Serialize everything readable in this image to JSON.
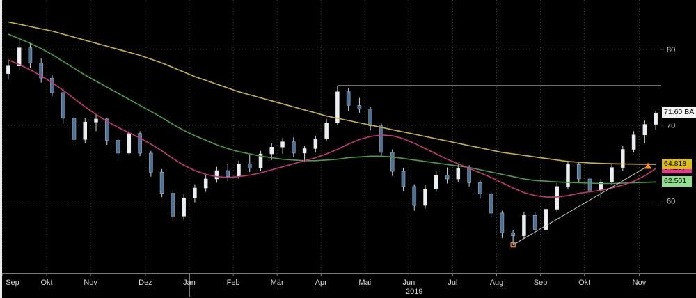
{
  "colors": {
    "background": "#000000",
    "grid": "#3e3e3e",
    "candle_up": "#eceff2",
    "candle_down": "#4e7093",
    "wick": "#ccd4dc",
    "ma_yellow": "#c9b53a",
    "ma_green": "#46a046",
    "ma_magenta": "#c93579",
    "annotation_white": "#d9d9d9",
    "marker_orange": "#ff8c1a",
    "badge_last_bg": "#f4f4f4",
    "badge_yellow_bg": "#d9bc1e",
    "badge_magenta_bg": "#e8359b",
    "badge_green_bg": "#8fdf8f"
  },
  "chart_data": {
    "type": "candlestick",
    "title": "",
    "x_range_label": "Sep 2018 - Nov 2019",
    "resolution": "weekly (read from daily chart)",
    "ylim": [
      50.5,
      86.5
    ],
    "y_ticks": [
      60,
      70,
      80
    ],
    "grid": "dotted",
    "months": [
      {
        "label": "Sep",
        "index": 0
      },
      {
        "label": "Okt",
        "index": 4
      },
      {
        "label": "Nov",
        "index": 8
      },
      {
        "label": "Dez",
        "index": 13
      },
      {
        "label": "Jan",
        "index": 17
      },
      {
        "label": "Feb",
        "index": 21
      },
      {
        "label": "Mär",
        "index": 25
      },
      {
        "label": "Apr",
        "index": 29
      },
      {
        "label": "Mai",
        "index": 33
      },
      {
        "label": "Jun",
        "index": 37
      },
      {
        "label": "Jul",
        "index": 41
      },
      {
        "label": "Aug",
        "index": 45
      },
      {
        "label": "Sep",
        "index": 49
      },
      {
        "label": "Okt",
        "index": 53
      },
      {
        "label": "Nov",
        "index": 58
      }
    ],
    "year_label": {
      "text": "2019",
      "at_index": 37.5
    },
    "year_separator_index": 17,
    "candles": [
      [
        76.8,
        78.5,
        76.0,
        77.8
      ],
      [
        77.8,
        81.4,
        77.2,
        80.2
      ],
      [
        80.2,
        80.8,
        77.5,
        78.2
      ],
      [
        78.2,
        78.8,
        75.6,
        76.2
      ],
      [
        76.2,
        76.6,
        73.8,
        74.3
      ],
      [
        74.3,
        74.8,
        70.2,
        70.9
      ],
      [
        70.9,
        71.5,
        67.4,
        68.1
      ],
      [
        68.1,
        70.9,
        67.6,
        70.4
      ],
      [
        70.4,
        71.4,
        69.2,
        70.8
      ],
      [
        70.8,
        71.0,
        67.4,
        68.0
      ],
      [
        68.0,
        68.4,
        65.6,
        66.3
      ],
      [
        66.3,
        69.3,
        66.0,
        68.9
      ],
      [
        68.9,
        69.2,
        65.9,
        66.3
      ],
      [
        66.3,
        66.6,
        63.2,
        63.8
      ],
      [
        63.8,
        64.2,
        60.5,
        61.0
      ],
      [
        61.0,
        61.4,
        57.3,
        58.0
      ],
      [
        58.0,
        60.9,
        57.5,
        60.4
      ],
      [
        60.4,
        62.2,
        59.8,
        61.7
      ],
      [
        61.7,
        63.4,
        61.2,
        62.9
      ],
      [
        62.9,
        64.5,
        62.4,
        64.0
      ],
      [
        64.0,
        64.9,
        62.6,
        63.2
      ],
      [
        63.2,
        65.3,
        62.9,
        64.9
      ],
      [
        64.9,
        66.1,
        63.8,
        64.3
      ],
      [
        64.3,
        66.6,
        64.0,
        66.2
      ],
      [
        66.2,
        67.6,
        65.4,
        67.1
      ],
      [
        67.1,
        68.3,
        66.2,
        67.8
      ],
      [
        67.8,
        68.4,
        65.8,
        66.3
      ],
      [
        66.3,
        67.3,
        65.1,
        66.9
      ],
      [
        66.9,
        68.6,
        66.4,
        68.2
      ],
      [
        68.2,
        70.8,
        67.9,
        70.3
      ],
      [
        70.3,
        75.2,
        70.0,
        74.4
      ],
      [
        74.4,
        74.9,
        71.8,
        72.6
      ],
      [
        72.6,
        73.6,
        71.6,
        72.1
      ],
      [
        72.1,
        72.4,
        69.3,
        69.9
      ],
      [
        69.9,
        70.2,
        65.9,
        66.4
      ],
      [
        66.4,
        66.8,
        63.3,
        63.9
      ],
      [
        63.9,
        64.3,
        61.3,
        61.9
      ],
      [
        61.9,
        62.2,
        58.7,
        59.4
      ],
      [
        59.4,
        62.1,
        59.0,
        61.6
      ],
      [
        61.6,
        63.9,
        61.2,
        63.4
      ],
      [
        63.4,
        64.4,
        62.3,
        62.9
      ],
      [
        62.9,
        64.8,
        62.5,
        64.3
      ],
      [
        64.3,
        64.7,
        61.9,
        62.4
      ],
      [
        62.4,
        62.8,
        60.3,
        60.9
      ],
      [
        60.9,
        61.2,
        57.9,
        58.4
      ],
      [
        58.4,
        58.7,
        55.1,
        55.8
      ],
      [
        55.8,
        56.2,
        54.2,
        55.4
      ],
      [
        55.4,
        58.6,
        55.0,
        58.1
      ],
      [
        58.1,
        58.5,
        55.6,
        56.2
      ],
      [
        56.2,
        59.4,
        55.9,
        58.9
      ],
      [
        58.9,
        62.4,
        58.5,
        61.9
      ],
      [
        61.9,
        65.3,
        61.5,
        64.8
      ],
      [
        64.8,
        65.2,
        62.4,
        62.9
      ],
      [
        62.9,
        63.3,
        60.9,
        61.4
      ],
      [
        61.4,
        62.9,
        60.4,
        62.5
      ],
      [
        62.5,
        64.9,
        62.1,
        64.4
      ],
      [
        64.4,
        67.3,
        64.0,
        66.8
      ],
      [
        66.8,
        69.2,
        66.4,
        68.7
      ],
      [
        68.7,
        70.6,
        67.6,
        70.1
      ],
      [
        70.1,
        71.9,
        69.4,
        71.6
      ]
    ],
    "series": [
      {
        "name": "ma-yellow-long",
        "color": "#c9b53a",
        "last_label": "64.818",
        "values": [
          83.6,
          83.3,
          83.0,
          82.7,
          82.4,
          82.0,
          81.6,
          81.2,
          80.8,
          80.4,
          80.0,
          79.6,
          79.2,
          78.7,
          78.2,
          77.6,
          77.0,
          76.4,
          75.9,
          75.4,
          74.9,
          74.4,
          74.0,
          73.6,
          73.2,
          72.8,
          72.4,
          72.0,
          71.6,
          71.2,
          70.9,
          70.6,
          70.3,
          70.0,
          69.7,
          69.4,
          69.1,
          68.8,
          68.5,
          68.2,
          67.9,
          67.6,
          67.3,
          67.0,
          66.7,
          66.4,
          66.2,
          66.0,
          65.8,
          65.6,
          65.4,
          65.2,
          65.1,
          65.0,
          64.95,
          64.9,
          64.87,
          64.85,
          64.83,
          64.818
        ]
      },
      {
        "name": "ma-green-medium",
        "color": "#46a046",
        "last_label": "62.501",
        "values": [
          82.0,
          81.4,
          80.8,
          80.1,
          79.3,
          78.4,
          77.5,
          76.6,
          75.8,
          75.0,
          74.2,
          73.4,
          72.6,
          71.8,
          71.0,
          70.1,
          69.3,
          68.6,
          68.0,
          67.4,
          66.9,
          66.5,
          66.2,
          65.9,
          65.7,
          65.5,
          65.4,
          65.3,
          65.3,
          65.4,
          65.5,
          65.7,
          65.8,
          65.9,
          65.9,
          65.8,
          65.6,
          65.4,
          65.2,
          65.0,
          64.8,
          64.6,
          64.4,
          64.1,
          63.8,
          63.5,
          63.2,
          62.9,
          62.7,
          62.6,
          62.5,
          62.45,
          62.4,
          62.35,
          62.3,
          62.3,
          62.35,
          62.4,
          62.45,
          62.501
        ]
      },
      {
        "name": "ma-magenta-short",
        "color": "#c93579",
        "last_label": "64.257",
        "values": [
          78.6,
          78.0,
          77.3,
          76.5,
          75.6,
          74.6,
          73.5,
          72.4,
          71.4,
          70.5,
          69.7,
          69.0,
          68.3,
          67.5,
          66.6,
          65.6,
          64.7,
          64.0,
          63.5,
          63.2,
          63.1,
          63.2,
          63.4,
          63.7,
          64.1,
          64.5,
          64.9,
          65.3,
          65.7,
          66.2,
          66.8,
          67.5,
          68.1,
          68.5,
          68.7,
          68.6,
          68.2,
          67.6,
          66.9,
          66.2,
          65.5,
          64.9,
          64.3,
          63.7,
          63.1,
          62.4,
          61.7,
          61.1,
          60.7,
          60.5,
          60.5,
          60.7,
          61.0,
          61.2,
          61.4,
          61.7,
          62.1,
          62.6,
          63.3,
          64.257
        ]
      }
    ],
    "annotations": {
      "hline": {
        "price": 75.2,
        "from_index": 30,
        "color": "#d9d9d9"
      },
      "trendline": {
        "from": {
          "index": 46,
          "price": 54.2
        },
        "to": {
          "index": 58.3,
          "price": 64.6
        },
        "color": "#d0d0d0"
      },
      "markers": [
        {
          "type": "square-outline",
          "index": 46,
          "price": 54.2,
          "color": "#ff8c1a"
        },
        {
          "type": "triangle-up",
          "index": 58.3,
          "price": 64.6,
          "color": "#ff8c1a"
        }
      ]
    },
    "last_price": {
      "label": "71.60 BA",
      "value": 71.6
    }
  }
}
